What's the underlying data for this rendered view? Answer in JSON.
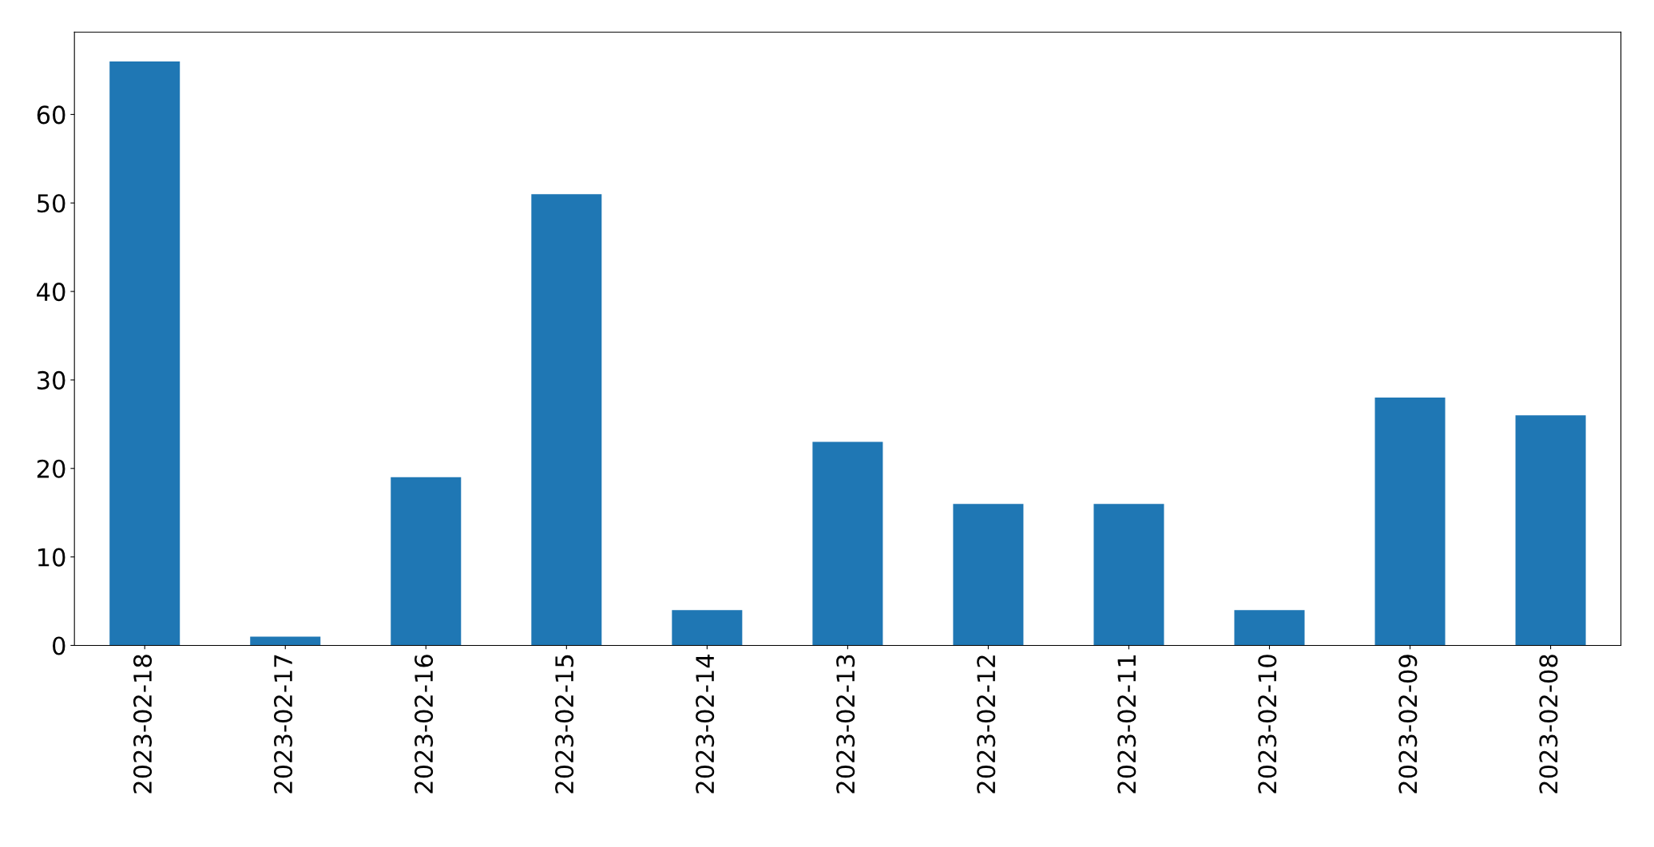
{
  "chart_data": {
    "type": "bar",
    "categories": [
      "2023-02-18",
      "2023-02-17",
      "2023-02-16",
      "2023-02-15",
      "2023-02-14",
      "2023-02-13",
      "2023-02-12",
      "2023-02-11",
      "2023-02-10",
      "2023-02-09",
      "2023-02-08"
    ],
    "values": [
      66,
      1,
      19,
      51,
      4,
      23,
      16,
      16,
      4,
      28,
      26
    ],
    "color": "#1f77b4",
    "ylim": [
      0,
      69.3
    ],
    "yticks": [
      0,
      10,
      20,
      30,
      40,
      50,
      60
    ],
    "grid": false,
    "legend": false
  }
}
